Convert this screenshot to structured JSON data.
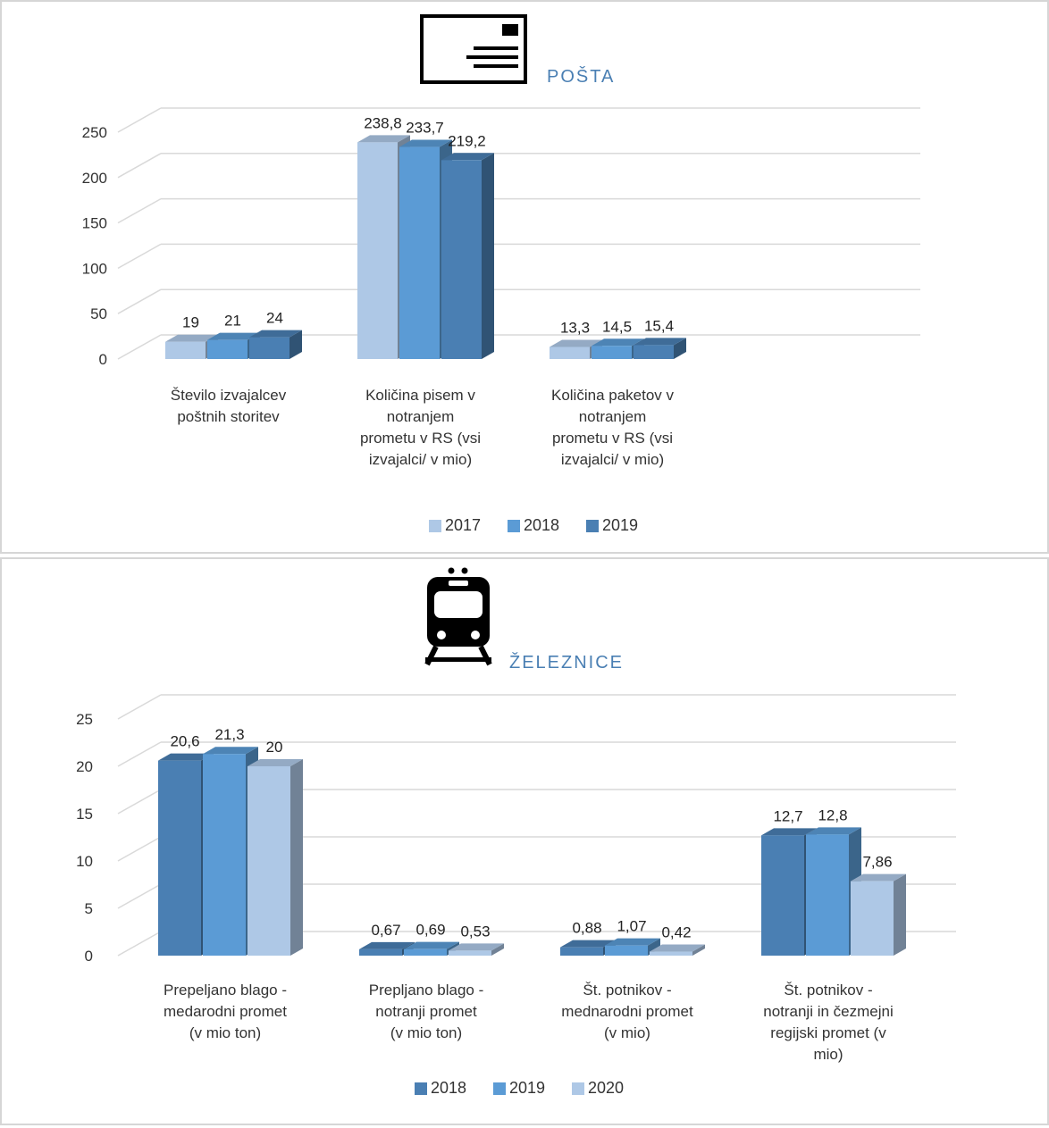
{
  "chart_data": [
    {
      "type": "bar",
      "title": "POŠTA",
      "icon": "envelope-icon",
      "categories": [
        [
          "Število izvajalcev",
          "poštnih storitev"
        ],
        [
          "Količina pisem v",
          "notranjem",
          "prometu v RS (vsi",
          "izvajalci/ v mio)"
        ],
        [
          "Količina paketov v",
          "notranjem",
          "prometu v RS (vsi",
          "izvajalci/ v mio)"
        ]
      ],
      "series": [
        {
          "name": "2017",
          "color": "#aec8e6",
          "values": [
            19,
            238.8,
            13.3
          ],
          "labels": [
            "19",
            "238,8",
            "13,3"
          ]
        },
        {
          "name": "2018",
          "color": "#5b9bd5",
          "values": [
            21,
            233.7,
            14.5
          ],
          "labels": [
            "21",
            "233,7",
            "14,5"
          ]
        },
        {
          "name": "2019",
          "color": "#4a7fb3",
          "values": [
            24,
            219.2,
            15.4
          ],
          "labels": [
            "24",
            "219,2",
            "15,4"
          ]
        }
      ],
      "yticks": [
        "0",
        "50",
        "100",
        "150",
        "200",
        "250"
      ],
      "ylim": [
        0,
        250
      ],
      "grid": true,
      "legend_position": "bottom"
    },
    {
      "type": "bar",
      "title": "ŽELEZNICE",
      "icon": "train-icon",
      "categories": [
        [
          "Prepeljano blago -",
          "medarodni promet",
          "(v mio ton)"
        ],
        [
          "Prepljano blago -",
          "notranji promet",
          "(v mio ton)"
        ],
        [
          "Št. potnikov -",
          "mednarodni promet",
          "(v mio)"
        ],
        [
          "Št. potnikov -",
          "notranji in čezmejni",
          "regijski  promet (v",
          "mio)"
        ]
      ],
      "series": [
        {
          "name": "2018",
          "color": "#4a7fb3",
          "values": [
            20.6,
            0.67,
            0.88,
            12.7
          ],
          "labels": [
            "20,6",
            "0,67",
            "0,88",
            "12,7"
          ]
        },
        {
          "name": "2019",
          "color": "#5b9bd5",
          "values": [
            21.3,
            0.69,
            1.07,
            12.8
          ],
          "labels": [
            "21,3",
            "0,69",
            "1,07",
            "12,8"
          ]
        },
        {
          "name": "2020",
          "color": "#aec8e6",
          "values": [
            20,
            0.53,
            0.42,
            7.86
          ],
          "labels": [
            "20",
            "0,53",
            "0,42",
            "7,86"
          ]
        }
      ],
      "yticks": [
        "0",
        "5",
        "10",
        "15",
        "20",
        "25"
      ],
      "ylim": [
        0,
        25
      ],
      "grid": true,
      "legend_position": "bottom"
    }
  ]
}
